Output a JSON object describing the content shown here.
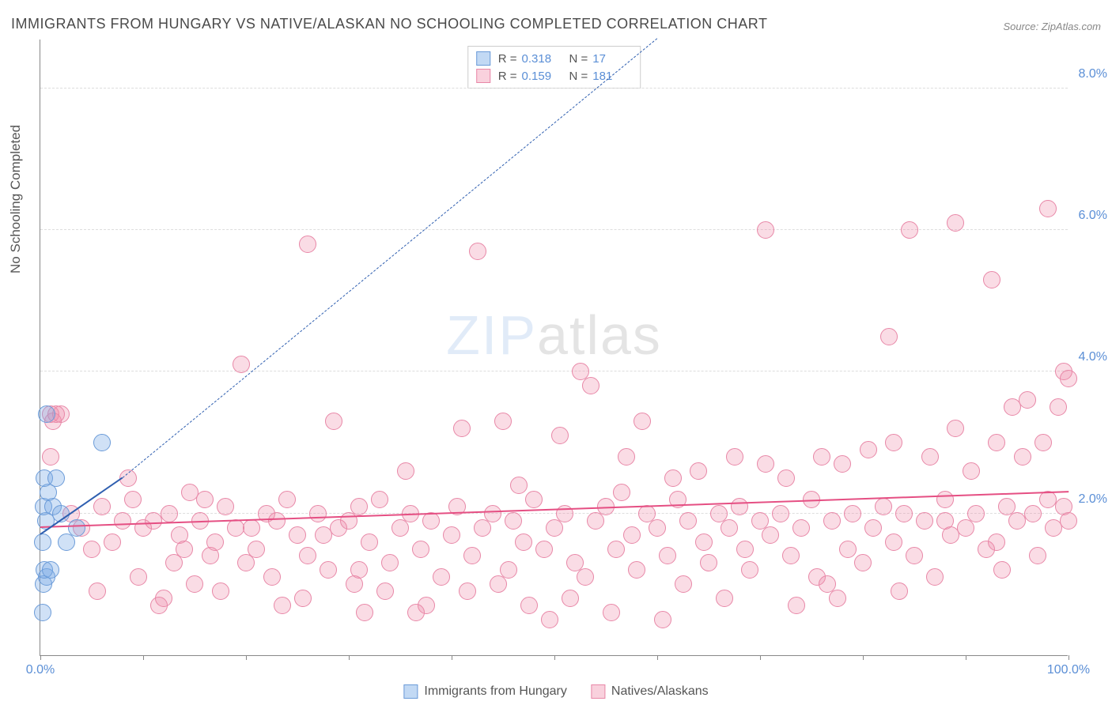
{
  "title": "IMMIGRANTS FROM HUNGARY VS NATIVE/ALASKAN NO SCHOOLING COMPLETED CORRELATION CHART",
  "source": "Source: ZipAtlas.com",
  "y_axis_label": "No Schooling Completed",
  "watermark": {
    "part1": "ZIP",
    "part2": "atlas"
  },
  "plot": {
    "xlim": [
      0,
      100
    ],
    "ylim": [
      0,
      8.7
    ],
    "y_ticks": [
      2.0,
      4.0,
      6.0,
      8.0
    ],
    "y_tick_labels": [
      "2.0%",
      "4.0%",
      "6.0%",
      "8.0%"
    ],
    "x_ticks": [
      0,
      10,
      20,
      30,
      40,
      50,
      60,
      70,
      80,
      90,
      100
    ],
    "x_tick_label_left": "0.0%",
    "x_tick_label_right": "100.0%",
    "background_color": "#ffffff",
    "grid_color": "#dddddd",
    "axis_color": "#888888",
    "label_color": "#5b8fd6"
  },
  "series": [
    {
      "name": "Immigrants from Hungary",
      "fill": "rgba(120,170,230,0.35)",
      "stroke": "#6b9bd8",
      "marker_radius": 11,
      "R": "0.318",
      "N": "17",
      "trend": {
        "x1": 0,
        "y1": 1.7,
        "x2": 8,
        "y2": 2.5,
        "color": "#2f5fb0",
        "solid_to_x": 8,
        "dash_to_x": 60,
        "dash_to_y": 8.7
      },
      "points": [
        [
          0.2,
          0.6
        ],
        [
          0.3,
          1.0
        ],
        [
          0.6,
          1.1
        ],
        [
          0.4,
          1.2
        ],
        [
          1.0,
          1.2
        ],
        [
          0.5,
          1.9
        ],
        [
          0.3,
          2.1
        ],
        [
          1.2,
          2.1
        ],
        [
          0.8,
          2.3
        ],
        [
          0.4,
          2.5
        ],
        [
          1.5,
          2.5
        ],
        [
          2.0,
          2.0
        ],
        [
          2.5,
          1.6
        ],
        [
          3.5,
          1.8
        ],
        [
          6.0,
          3.0
        ],
        [
          0.6,
          3.4
        ],
        [
          0.2,
          1.6
        ]
      ]
    },
    {
      "name": "Natives/Alaskans",
      "fill": "rgba(240,140,170,0.30)",
      "stroke": "#e887a7",
      "marker_radius": 11,
      "R": "0.159",
      "N": "181",
      "trend": {
        "x1": 0,
        "y1": 1.8,
        "x2": 100,
        "y2": 2.3,
        "color": "#e54f83",
        "solid_to_x": 100
      },
      "points": [
        [
          1.0,
          3.4
        ],
        [
          1.2,
          3.3
        ],
        [
          1.0,
          2.8
        ],
        [
          2.0,
          3.4
        ],
        [
          1.5,
          3.4
        ],
        [
          3.0,
          2.0
        ],
        [
          4.0,
          1.8
        ],
        [
          5.0,
          1.5
        ],
        [
          6.0,
          2.1
        ],
        [
          7.0,
          1.6
        ],
        [
          8.0,
          1.9
        ],
        [
          9.0,
          2.2
        ],
        [
          9.5,
          1.1
        ],
        [
          10.0,
          1.8
        ],
        [
          11.0,
          1.9
        ],
        [
          12.0,
          0.8
        ],
        [
          12.5,
          2.0
        ],
        [
          13.0,
          1.3
        ],
        [
          13.5,
          1.7
        ],
        [
          14.0,
          1.5
        ],
        [
          15.0,
          1.0
        ],
        [
          15.5,
          1.9
        ],
        [
          16.0,
          2.2
        ],
        [
          16.5,
          1.4
        ],
        [
          17.0,
          1.6
        ],
        [
          18.0,
          2.1
        ],
        [
          19.0,
          1.8
        ],
        [
          19.5,
          4.1
        ],
        [
          20.0,
          1.3
        ],
        [
          21.0,
          1.5
        ],
        [
          22.0,
          2.0
        ],
        [
          22.5,
          1.1
        ],
        [
          23.0,
          1.9
        ],
        [
          24.0,
          2.2
        ],
        [
          25.0,
          1.7
        ],
        [
          25.5,
          0.8
        ],
        [
          26.0,
          1.4
        ],
        [
          26.0,
          5.8
        ],
        [
          27.0,
          2.0
        ],
        [
          28.0,
          1.2
        ],
        [
          28.5,
          3.3
        ],
        [
          29.0,
          1.8
        ],
        [
          30.0,
          1.9
        ],
        [
          30.5,
          1.0
        ],
        [
          31.0,
          2.1
        ],
        [
          31.5,
          0.6
        ],
        [
          32.0,
          1.6
        ],
        [
          33.0,
          2.2
        ],
        [
          33.5,
          0.9
        ],
        [
          34.0,
          1.3
        ],
        [
          35.0,
          1.8
        ],
        [
          35.5,
          2.6
        ],
        [
          36.0,
          2.0
        ],
        [
          37.0,
          1.5
        ],
        [
          37.5,
          0.7
        ],
        [
          38.0,
          1.9
        ],
        [
          39.0,
          1.1
        ],
        [
          40.0,
          1.7
        ],
        [
          40.5,
          2.1
        ],
        [
          41.0,
          3.2
        ],
        [
          42.0,
          1.4
        ],
        [
          42.5,
          5.7
        ],
        [
          43.0,
          1.8
        ],
        [
          44.0,
          2.0
        ],
        [
          44.5,
          1.0
        ],
        [
          45.0,
          3.3
        ],
        [
          45.5,
          1.2
        ],
        [
          46.0,
          1.9
        ],
        [
          47.0,
          1.6
        ],
        [
          47.5,
          0.7
        ],
        [
          48.0,
          2.2
        ],
        [
          49.0,
          1.5
        ],
        [
          49.5,
          0.5
        ],
        [
          50.0,
          1.8
        ],
        [
          50.5,
          3.1
        ],
        [
          51.0,
          2.0
        ],
        [
          52.0,
          1.3
        ],
        [
          52.5,
          4.0
        ],
        [
          53.0,
          1.1
        ],
        [
          53.5,
          3.8
        ],
        [
          54.0,
          1.9
        ],
        [
          55.0,
          2.1
        ],
        [
          55.5,
          0.6
        ],
        [
          56.0,
          1.5
        ],
        [
          57.0,
          2.8
        ],
        [
          57.5,
          1.7
        ],
        [
          58.0,
          1.2
        ],
        [
          58.5,
          3.3
        ],
        [
          59.0,
          2.0
        ],
        [
          60.0,
          1.8
        ],
        [
          60.5,
          0.5
        ],
        [
          61.0,
          1.4
        ],
        [
          62.0,
          2.2
        ],
        [
          62.5,
          1.0
        ],
        [
          63.0,
          1.9
        ],
        [
          64.0,
          2.6
        ],
        [
          64.5,
          1.6
        ],
        [
          65.0,
          1.3
        ],
        [
          66.0,
          2.0
        ],
        [
          66.5,
          0.8
        ],
        [
          67.0,
          1.8
        ],
        [
          68.0,
          2.1
        ],
        [
          68.5,
          1.5
        ],
        [
          69.0,
          1.2
        ],
        [
          70.0,
          1.9
        ],
        [
          70.5,
          2.7
        ],
        [
          70.5,
          6.0
        ],
        [
          71.0,
          1.7
        ],
        [
          72.0,
          2.0
        ],
        [
          73.0,
          1.4
        ],
        [
          73.5,
          0.7
        ],
        [
          74.0,
          1.8
        ],
        [
          75.0,
          2.2
        ],
        [
          75.5,
          1.1
        ],
        [
          76.0,
          2.8
        ],
        [
          76.5,
          1.0
        ],
        [
          77.0,
          1.9
        ],
        [
          78.0,
          2.7
        ],
        [
          78.5,
          1.5
        ],
        [
          79.0,
          2.0
        ],
        [
          80.0,
          1.3
        ],
        [
          80.5,
          2.9
        ],
        [
          81.0,
          1.8
        ],
        [
          82.0,
          2.1
        ],
        [
          82.5,
          4.5
        ],
        [
          83.0,
          1.6
        ],
        [
          83.5,
          0.9
        ],
        [
          84.0,
          2.0
        ],
        [
          84.5,
          6.0
        ],
        [
          85.0,
          1.4
        ],
        [
          86.0,
          1.9
        ],
        [
          86.5,
          2.8
        ],
        [
          87.0,
          1.1
        ],
        [
          88.0,
          2.2
        ],
        [
          88.5,
          1.7
        ],
        [
          89.0,
          3.2
        ],
        [
          89.0,
          6.1
        ],
        [
          90.0,
          1.8
        ],
        [
          90.5,
          2.6
        ],
        [
          91.0,
          2.0
        ],
        [
          92.0,
          1.5
        ],
        [
          92.5,
          5.3
        ],
        [
          93.0,
          3.0
        ],
        [
          93.5,
          1.2
        ],
        [
          94.0,
          2.1
        ],
        [
          94.5,
          3.5
        ],
        [
          95.0,
          1.9
        ],
        [
          95.5,
          2.8
        ],
        [
          96.0,
          3.6
        ],
        [
          96.5,
          2.0
        ],
        [
          97.0,
          1.4
        ],
        [
          97.5,
          3.0
        ],
        [
          98.0,
          2.2
        ],
        [
          98.0,
          6.3
        ],
        [
          98.5,
          1.8
        ],
        [
          99.0,
          3.5
        ],
        [
          99.5,
          2.1
        ],
        [
          99.5,
          4.0
        ],
        [
          100.0,
          1.9
        ],
        [
          100.0,
          3.9
        ],
        [
          5.5,
          0.9
        ],
        [
          8.5,
          2.5
        ],
        [
          11.5,
          0.7
        ],
        [
          14.5,
          2.3
        ],
        [
          17.5,
          0.9
        ],
        [
          20.5,
          1.8
        ],
        [
          23.5,
          0.7
        ],
        [
          27.5,
          1.7
        ],
        [
          31.0,
          1.2
        ],
        [
          36.5,
          0.6
        ],
        [
          41.5,
          0.9
        ],
        [
          46.5,
          2.4
        ],
        [
          51.5,
          0.8
        ],
        [
          56.5,
          2.3
        ],
        [
          61.5,
          2.5
        ],
        [
          67.5,
          2.8
        ],
        [
          72.5,
          2.5
        ],
        [
          77.5,
          0.8
        ],
        [
          83.0,
          3.0
        ],
        [
          88.0,
          1.9
        ],
        [
          93.0,
          1.6
        ]
      ]
    }
  ],
  "legend_top": {
    "r_label": "R =",
    "n_label": "N ="
  },
  "legend_bottom": [
    {
      "label": "Immigrants from Hungary",
      "fill": "rgba(120,170,230,0.45)",
      "stroke": "#6b9bd8"
    },
    {
      "label": "Natives/Alaskans",
      "fill": "rgba(240,140,170,0.40)",
      "stroke": "#e887a7"
    }
  ]
}
